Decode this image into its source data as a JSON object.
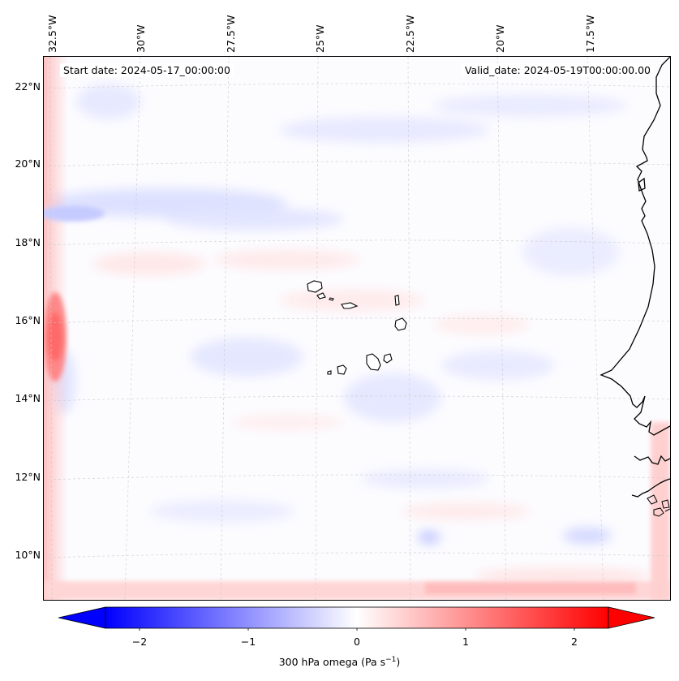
{
  "map": {
    "start_label": "Start date: 2024-05-17_00:00:00",
    "valid_label": "Valid_date: 2024-05-19T00:00:00.00",
    "lon_labels": [
      "32.5°W",
      "30°W",
      "27.5°W",
      "25°W",
      "22.5°W",
      "20°W",
      "17.5°W"
    ],
    "lat_labels": [
      "22°N",
      "20°N",
      "18°N",
      "16°N",
      "14°N",
      "12°N",
      "10°N"
    ],
    "extent": {
      "lon_min": -32.7,
      "lon_max": -15.2,
      "lat_min": 8.9,
      "lat_max": 22.7
    },
    "coastline_color": "#000000",
    "gridline_color": "#c8c8c8"
  },
  "colorbar": {
    "ticks": [
      "−2",
      "−1",
      "0",
      "1",
      "2"
    ],
    "label_text": "300 hPa omega (Pa s",
    "label_exp": "−1",
    "label_close": ")",
    "min_color": "#0000ff",
    "mid_color": "#ffffff",
    "max_color": "#ff0000"
  }
}
